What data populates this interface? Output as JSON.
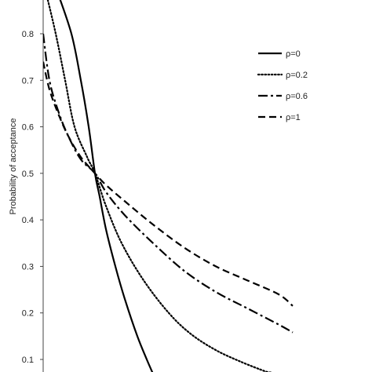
{
  "chart_data": {
    "type": "line",
    "ylabel": "Probability of acceptance",
    "xlabel": "",
    "ylim": [
      0.06,
      0.9
    ],
    "yticks": [
      0.1,
      0.2,
      0.3,
      0.4,
      0.5,
      0.6,
      0.7,
      0.8
    ],
    "ytick_labels": [
      "0.1",
      "0.2",
      "0.3",
      "0.4",
      "0.5",
      "0.6",
      "0.7",
      "0.8"
    ],
    "xlim": [
      0,
      1
    ],
    "grid": false,
    "legend_position": "top-right",
    "series": [
      {
        "name": "ρ=0",
        "style": "solid",
        "color": "#000000",
        "x": [
          0.04,
          0.09,
          0.12,
          0.145,
          0.165,
          0.18,
          0.2,
          0.23,
          0.26,
          0.3,
          0.33,
          0.356
        ],
        "y": [
          0.9,
          0.8,
          0.7,
          0.6,
          0.5,
          0.45,
          0.38,
          0.3,
          0.23,
          0.15,
          0.1,
          0.06
        ]
      },
      {
        "name": "ρ=0.2",
        "style": "dotted",
        "color": "#000000",
        "x": [
          0.005,
          0.04,
          0.07,
          0.1,
          0.14,
          0.165,
          0.2,
          0.25,
          0.32,
          0.4,
          0.47,
          0.55,
          0.63,
          0.705,
          0.725
        ],
        "y": [
          0.9,
          0.8,
          0.7,
          0.6,
          0.535,
          0.5,
          0.43,
          0.35,
          0.27,
          0.2,
          0.155,
          0.12,
          0.095,
          0.075,
          0.072
        ]
      },
      {
        "name": "ρ=0.6",
        "style": "dashdot",
        "color": "#000000",
        "x": [
          0.0,
          0.02,
          0.05,
          0.08,
          0.12,
          0.165,
          0.2,
          0.26,
          0.35,
          0.45,
          0.55,
          0.65,
          0.75,
          0.795
        ],
        "y": [
          0.8,
          0.7,
          0.63,
          0.58,
          0.53,
          0.5,
          0.46,
          0.41,
          0.35,
          0.29,
          0.245,
          0.21,
          0.175,
          0.158
        ]
      },
      {
        "name": "ρ=1",
        "style": "dashed",
        "color": "#000000",
        "x": [
          0.0,
          0.02,
          0.05,
          0.08,
          0.12,
          0.165,
          0.2,
          0.26,
          0.35,
          0.45,
          0.55,
          0.65,
          0.75,
          0.795
        ],
        "y": [
          0.74,
          0.68,
          0.625,
          0.58,
          0.535,
          0.5,
          0.475,
          0.44,
          0.39,
          0.34,
          0.3,
          0.27,
          0.24,
          0.215
        ]
      }
    ]
  }
}
